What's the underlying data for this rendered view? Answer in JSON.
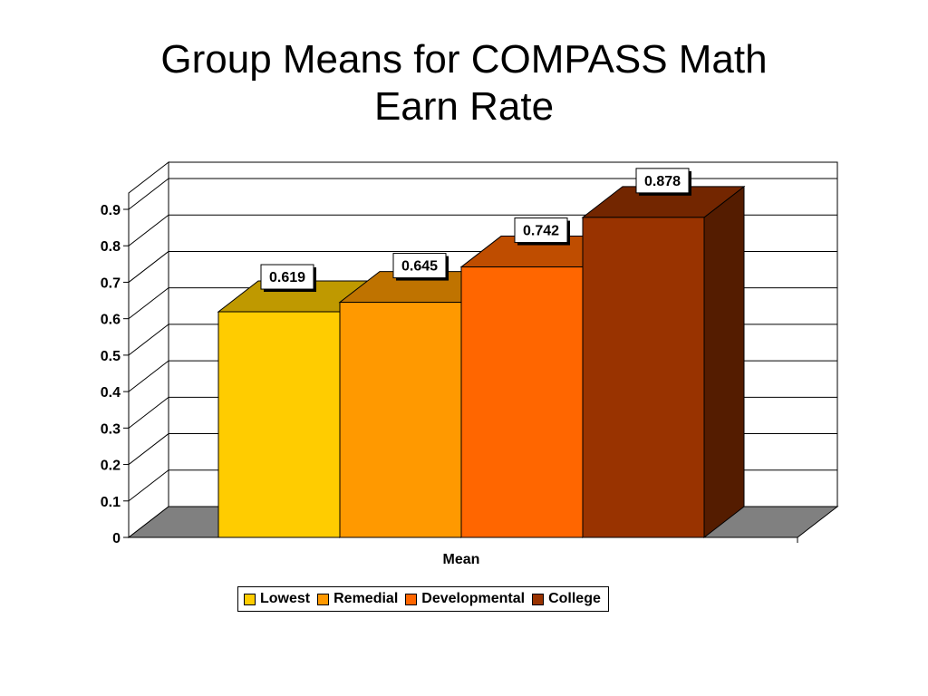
{
  "title": {
    "line1": "Group Means for COMPASS Math",
    "line2": "Earn Rate"
  },
  "chart_data": {
    "type": "bar",
    "style": "3d",
    "categories": [
      "Mean"
    ],
    "series": [
      {
        "name": "Lowest",
        "values": [
          0.619
        ],
        "label": "0.619",
        "color": "#FFCC00"
      },
      {
        "name": "Remedial",
        "values": [
          0.645
        ],
        "label": "0.645",
        "color": "#FF9900"
      },
      {
        "name": "Developmental",
        "values": [
          0.742
        ],
        "label": "0.742",
        "color": "#FF6600"
      },
      {
        "name": "College",
        "values": [
          0.878
        ],
        "label": "0.878",
        "color": "#993300"
      }
    ],
    "xlabel": "Mean",
    "ylabel": "",
    "ylim": [
      0,
      0.9
    ],
    "yticks": [
      "0",
      "0.1",
      "0.2",
      "0.3",
      "0.4",
      "0.5",
      "0.6",
      "0.7",
      "0.8",
      "0.9"
    ],
    "grid": true,
    "legend_position": "bottom",
    "floor_color": "#808080"
  }
}
